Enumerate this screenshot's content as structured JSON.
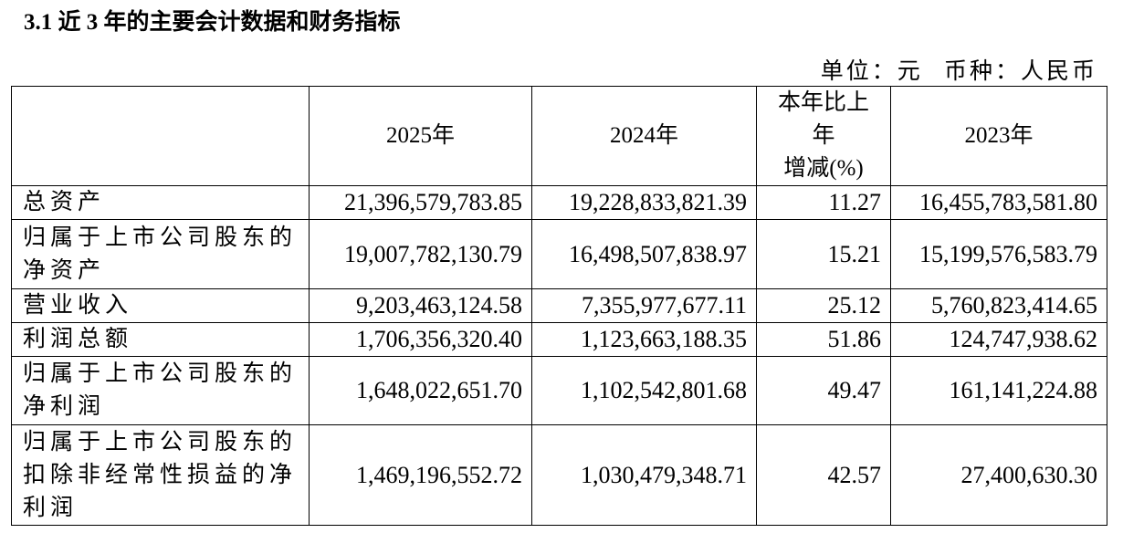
{
  "header": {
    "title": "3.1 近 3 年的主要会计数据和财务指标",
    "unit": "单位：元 币种：人民币"
  },
  "table": {
    "columns": [
      "",
      "2025年",
      "2024年",
      [
        "本年比上",
        "年",
        "增减(%)"
      ],
      "2023年"
    ],
    "rows": [
      [
        "总资产",
        "21,396,579,783.85",
        "19,228,833,821.39",
        "11.27",
        "16,455,783,581.80"
      ],
      [
        "归属于上市公司股东的净资产",
        "19,007,782,130.79",
        "16,498,507,838.97",
        "15.21",
        "15,199,576,583.79"
      ],
      [
        "营业收入",
        "9,203,463,124.58",
        "7,355,977,677.11",
        "25.12",
        "5,760,823,414.65"
      ],
      [
        "利润总额",
        "1,706,356,320.40",
        "1,123,663,188.35",
        "51.86",
        "124,747,938.62"
      ],
      [
        "归属于上市公司股东的净利润",
        "1,648,022,651.70",
        "1,102,542,801.68",
        "49.47",
        "161,141,224.88"
      ],
      [
        "归属于上市公司股东的扣除非经常性损益的净利润",
        "1,469,196,552.72",
        "1,030,479,348.71",
        "42.57",
        "27,400,630.30"
      ]
    ]
  }
}
